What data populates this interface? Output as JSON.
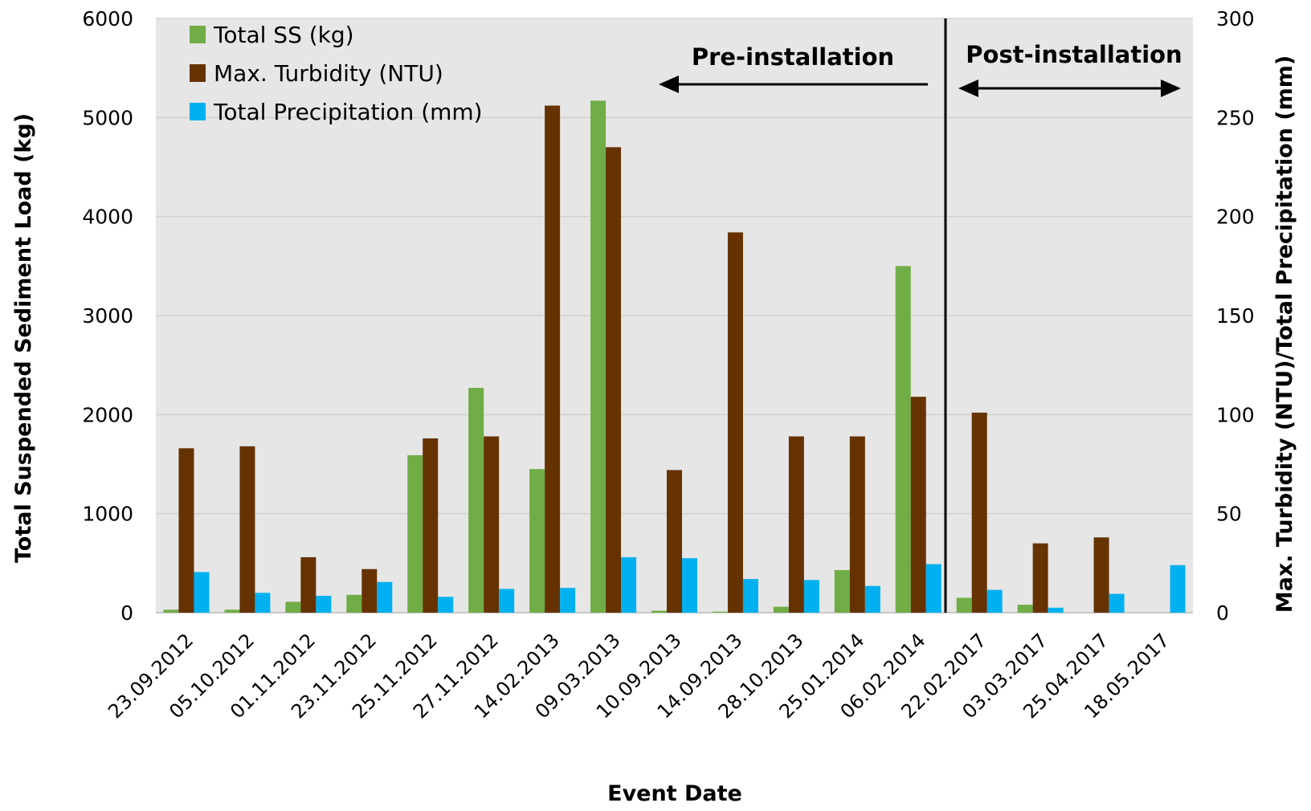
{
  "chart_data": {
    "type": "bar",
    "xlabel": "Event Date",
    "ylabel_left": "Total Suspended Sediment Load (kg)",
    "ylabel_right": "Max. Turbidity (NTU)/Total Precipitation (mm)",
    "ylim_left": [
      0,
      6000
    ],
    "ylim_right": [
      0,
      300
    ],
    "yticks_left": [
      "0",
      "1000",
      "2000",
      "3000",
      "4000",
      "5000",
      "6000"
    ],
    "yticks_right": [
      "0",
      "50",
      "100",
      "150",
      "200",
      "250",
      "300"
    ],
    "grid": true,
    "legend_position": "top-left",
    "categories": [
      "23.09.2012",
      "05.10.2012",
      "01.11.2012",
      "23.11.2012",
      "25.11.2012",
      "27.11.2012",
      "14.02.2013",
      "09.03.2013",
      "10.09.2013",
      "14.09.2013",
      "28.10.2013",
      "25.01.2014",
      "06.02.2014",
      "22.02.2017",
      "03.03.2017",
      "25.04.2017",
      "18.05.2017"
    ],
    "series": [
      {
        "name": "Total SS (kg)",
        "axis": "left",
        "color": "#70ad47",
        "values": [
          30,
          30,
          110,
          180,
          1590,
          2270,
          1450,
          5170,
          20,
          10,
          60,
          430,
          3500,
          150,
          80,
          0,
          0
        ]
      },
      {
        "name": "Max. Turbidity (NTU)",
        "axis": "right",
        "color": "#663300",
        "values": [
          83,
          84,
          28,
          22,
          88,
          89,
          256,
          235,
          72,
          192,
          89,
          89,
          109,
          101,
          35,
          38,
          0
        ]
      },
      {
        "name": "Total Precipitation (mm)",
        "axis": "right",
        "color": "#00b0f0",
        "values": [
          20.5,
          10,
          8.5,
          15.5,
          8,
          12,
          12.5,
          28,
          27.5,
          17,
          16.5,
          13.5,
          24.5,
          11.5,
          2.5,
          9.5,
          24
        ]
      }
    ],
    "annotations": {
      "pre": "Pre-installation",
      "post": "Post-installation"
    }
  }
}
